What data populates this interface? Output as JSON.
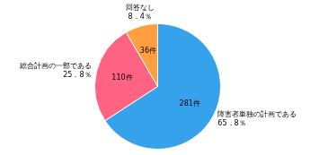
{
  "chart_data": {
    "type": "pie",
    "categories": [
      "障害者単独の計画である",
      "総合計画の一部である",
      "回答なし"
    ],
    "values": [
      65.8,
      25.8,
      8.4
    ],
    "value_labels": [
      "65．8％",
      "25．8％",
      "8．4％"
    ],
    "counts": [
      281,
      110,
      36
    ],
    "count_labels": [
      "281件",
      "110件",
      "36件"
    ],
    "data_labels": true,
    "legend": false
  }
}
